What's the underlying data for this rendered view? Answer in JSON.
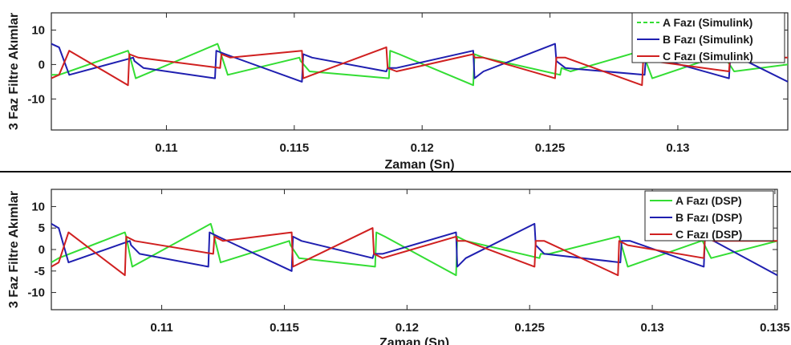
{
  "colors": {
    "phase_a": "#33dd33",
    "phase_b": "#1f1fb0",
    "phase_c": "#d02020",
    "background": "#ffffff",
    "axes": "#262626"
  },
  "chart_data": [
    {
      "type": "line",
      "xlabel": "Zaman (Sn)",
      "ylabel": "3 Faz Filtre Akımlar",
      "xlim": [
        0.1055,
        0.1343
      ],
      "ylim": [
        -19,
        15
      ],
      "xticks": [
        0.11,
        0.115,
        0.12,
        0.125,
        0.13
      ],
      "xtick_labels": [
        "0.11",
        "0.115",
        "0.12",
        "0.125",
        "0.13"
      ],
      "yticks": [
        10,
        0,
        -10
      ],
      "ytick_labels": [
        "10",
        "0",
        "-10"
      ],
      "legend_position": "top-right",
      "grid": false,
      "series": [
        {
          "name": "A Fazı (Simulink)",
          "color": "#33dd33",
          "style": "dashed",
          "x": [
            0.1055,
            0.1058,
            0.1085,
            0.10855,
            0.1088,
            0.112,
            0.11205,
            0.1124,
            0.1152,
            0.11525,
            0.1156,
            0.1187,
            0.11875,
            0.1191,
            0.122,
            0.12205,
            0.1224,
            0.1254,
            0.12545,
            0.1258,
            0.1286,
            0.12865,
            0.129,
            0.1318,
            0.13185,
            0.1322,
            0.1343
          ],
          "y": [
            -3,
            -3,
            4,
            3,
            -4,
            6,
            5,
            -3,
            2,
            1,
            -2,
            -4,
            4,
            3,
            -6,
            3,
            2,
            -3,
            -1,
            -2,
            4,
            3,
            -4,
            3,
            2,
            -2,
            0
          ]
        },
        {
          "name": "B Fazı (Simulink)",
          "color": "#1f1fb0",
          "style": "solid",
          "x": [
            0.1055,
            0.1058,
            0.1062,
            0.1087,
            0.10875,
            0.1091,
            0.1119,
            0.11195,
            0.1123,
            0.1153,
            0.11535,
            0.1157,
            0.1186,
            0.11865,
            0.119,
            0.122,
            0.12205,
            0.1224,
            0.1252,
            0.12525,
            0.1256,
            0.1287,
            0.12875,
            0.1291,
            0.132,
            0.13205,
            0.1324,
            0.1343
          ],
          "y": [
            6,
            5,
            -3,
            2,
            1,
            -1,
            -4,
            4,
            3,
            -5,
            3,
            2,
            -2,
            -1,
            -1,
            4,
            -4,
            -2,
            6,
            1,
            -1,
            -3,
            2,
            2,
            -4,
            2,
            2,
            -5
          ]
        },
        {
          "name": "C Fazı (Simulink)",
          "color": "#d02020",
          "style": "solid",
          "x": [
            0.1055,
            0.1058,
            0.1062,
            0.1085,
            0.10855,
            0.1089,
            0.1121,
            0.11215,
            0.1125,
            0.1153,
            0.11535,
            0.1157,
            0.1186,
            0.11865,
            0.119,
            0.122,
            0.12205,
            0.1224,
            0.1252,
            0.12525,
            0.1256,
            0.1286,
            0.12865,
            0.129,
            0.132,
            0.13205,
            0.1324,
            0.1343
          ],
          "y": [
            -4,
            -3,
            4,
            -6,
            3,
            2,
            -1,
            3,
            2,
            4,
            -4,
            -3,
            5,
            -1,
            -2,
            3,
            2,
            2,
            -4,
            2,
            2,
            -6,
            2,
            1,
            -2,
            3,
            2,
            2
          ]
        }
      ]
    },
    {
      "type": "line",
      "xlabel": "Zaman (Sn)",
      "ylabel": "3 Faz Filtre Akımlar",
      "xlim": [
        0.1055,
        0.1351
      ],
      "ylim": [
        -14,
        14
      ],
      "xticks": [
        0.11,
        0.115,
        0.12,
        0.125,
        0.13,
        0.135
      ],
      "xtick_labels": [
        "0.11",
        "0.115",
        "0.12",
        "0.125",
        "0.13",
        "0.135"
      ],
      "yticks": [
        10,
        5,
        0,
        -5,
        -10
      ],
      "ytick_labels": [
        "10",
        "5",
        "0",
        "-5",
        "-10"
      ],
      "legend_position": "top-right",
      "grid": false,
      "series": [
        {
          "name": "A Fazı (DSP)",
          "color": "#33dd33",
          "style": "solid",
          "x": [
            0.1055,
            0.1058,
            0.1085,
            0.10855,
            0.1088,
            0.112,
            0.11205,
            0.1124,
            0.1152,
            0.11525,
            0.1156,
            0.1187,
            0.11875,
            0.1191,
            0.122,
            0.12205,
            0.1224,
            0.1254,
            0.12545,
            0.1258,
            0.1286,
            0.12865,
            0.129,
            0.132,
            0.13205,
            0.1324,
            0.1351
          ],
          "y": [
            -3,
            -2,
            4,
            3,
            -4,
            6,
            5,
            -3,
            2,
            1,
            -2,
            -4,
            4,
            3,
            -6,
            3,
            2,
            -2,
            -1,
            -1,
            3,
            3,
            -4,
            2,
            2,
            -2,
            2
          ]
        },
        {
          "name": "B Fazı (DSP)",
          "color": "#1f1fb0",
          "style": "solid",
          "x": [
            0.1055,
            0.1058,
            0.1062,
            0.1087,
            0.10875,
            0.1091,
            0.1119,
            0.11195,
            0.1123,
            0.1153,
            0.11535,
            0.1157,
            0.1186,
            0.11865,
            0.119,
            0.122,
            0.12205,
            0.1224,
            0.1252,
            0.12525,
            0.1256,
            0.1287,
            0.12875,
            0.1291,
            0.1321,
            0.13215,
            0.1325,
            0.1351
          ],
          "y": [
            6,
            5,
            -3,
            2,
            1,
            -1,
            -4,
            4,
            3,
            -5,
            3,
            2,
            -2,
            -1,
            -1,
            4,
            -4,
            -2,
            6,
            1,
            -1,
            -3,
            2,
            2,
            -4,
            3,
            2,
            -6
          ]
        },
        {
          "name": "C Fazı (DSP)",
          "color": "#d02020",
          "style": "solid",
          "x": [
            0.1055,
            0.1058,
            0.1062,
            0.1085,
            0.10855,
            0.1089,
            0.1121,
            0.11215,
            0.1125,
            0.1153,
            0.11535,
            0.1157,
            0.1186,
            0.11865,
            0.119,
            0.122,
            0.12205,
            0.1224,
            0.1252,
            0.12525,
            0.1256,
            0.1286,
            0.12865,
            0.129,
            0.1321,
            0.13215,
            0.1325,
            0.1351
          ],
          "y": [
            -4,
            -3,
            4,
            -6,
            3,
            2,
            -1,
            3,
            2,
            4,
            -4,
            -3,
            5,
            -1,
            -2,
            3,
            2,
            2,
            -4,
            2,
            2,
            -6,
            2,
            1,
            -2,
            3,
            2,
            2
          ]
        }
      ]
    }
  ]
}
